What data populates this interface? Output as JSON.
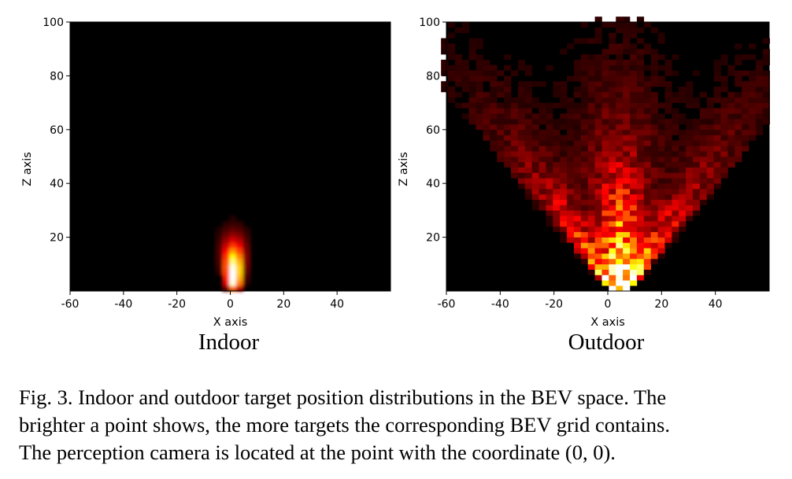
{
  "chart_data": [
    {
      "type": "heatmap",
      "title": "Indoor",
      "xlabel": "X axis",
      "ylabel": "Z axis",
      "xlim": [
        -60,
        60
      ],
      "ylim": [
        0,
        100
      ],
      "xticks": [
        "-60",
        "-40",
        "-20",
        "0",
        "20",
        "40"
      ],
      "yticks": [
        "20",
        "40",
        "60",
        "80",
        "100"
      ],
      "colormap": "hot",
      "background": "#000000",
      "distribution": {
        "peak_x": 0,
        "peak_z": 5,
        "spread_x": 6,
        "spread_z": 15,
        "max_extent_z": 25,
        "max_extent_x": 10
      }
    },
    {
      "type": "heatmap",
      "title": "Outdoor",
      "xlabel": "X axis",
      "ylabel": "Z axis",
      "xlim": [
        -60,
        60
      ],
      "ylim": [
        0,
        100
      ],
      "xticks": [
        "-60",
        "-40",
        "-20",
        "0",
        "20",
        "40"
      ],
      "yticks": [
        "20",
        "40",
        "60",
        "80",
        "100"
      ],
      "colormap": "hot",
      "background": "#000000",
      "distribution": {
        "peak_x": 3,
        "peak_z": 10,
        "cone_half_angle_deg": 40,
        "max_extent_z": 100,
        "max_extent_x": 50
      }
    }
  ],
  "caption": {
    "line1": "Fig. 3.  Indoor and outdoor target position distributions in the BEV space. The",
    "line2": "brighter a point shows, the more targets the corresponding BEV grid contains.",
    "line3": "The perception camera is located at the point with the coordinate (0, 0)."
  }
}
